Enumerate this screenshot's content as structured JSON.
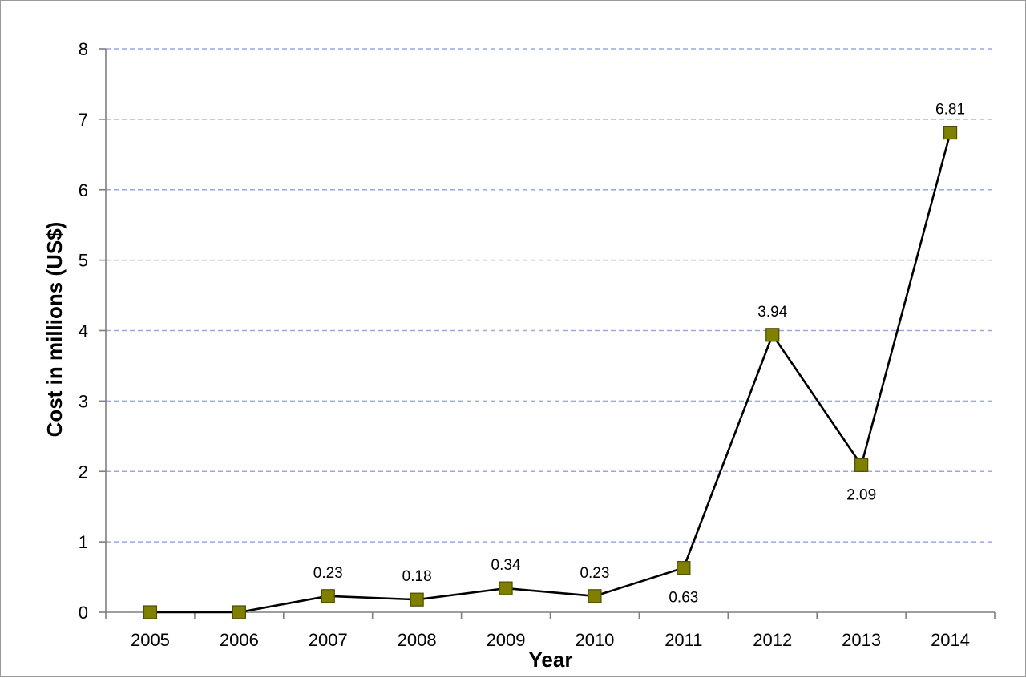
{
  "chart_data": {
    "type": "line",
    "title": "",
    "xlabel": "Year",
    "ylabel": "Cost in millions (US$)",
    "ylim": [
      0,
      8
    ],
    "yticks": [
      "0",
      "1",
      "2",
      "3",
      "4",
      "5",
      "6",
      "7",
      "8"
    ],
    "categories": [
      "2005",
      "2006",
      "2007",
      "2008",
      "2009",
      "2010",
      "2011",
      "2012",
      "2013",
      "2014"
    ],
    "values": [
      0,
      0,
      0.23,
      0.18,
      0.34,
      0.23,
      0.63,
      3.94,
      2.09,
      6.81
    ],
    "data_labels": [
      "",
      "",
      "0.23",
      "0.18",
      "0.34",
      "0.23",
      "0.63",
      "3.94",
      "2.09",
      "6.81"
    ],
    "data_label_position": [
      "",
      "",
      "above",
      "above",
      "above",
      "above",
      "below",
      "above",
      "below",
      "above"
    ],
    "grid": true,
    "line_color": "#000000",
    "marker_color": "#808000",
    "marker_shape": "square",
    "gridline_color": "#9aa9e0"
  }
}
